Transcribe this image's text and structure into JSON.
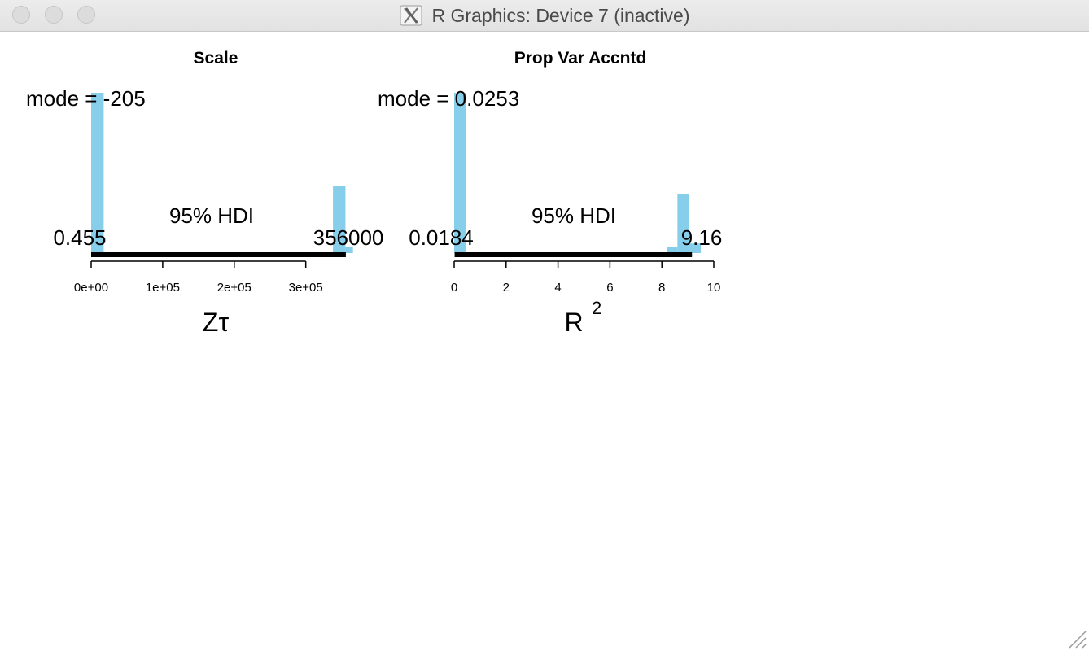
{
  "window": {
    "title": "R Graphics: Device 7 (inactive)",
    "app_icon": "x11-icon",
    "controls": [
      "close",
      "minimize",
      "maximize"
    ]
  },
  "colors": {
    "bar": "#87ceeb",
    "hdi": "#000000",
    "text": "#000000"
  },
  "chart_data": [
    {
      "type": "bar",
      "title": "Scale",
      "xlabel": "Zτ",
      "mode_label": "mode = -205",
      "hdi_label": "95% HDI",
      "hdi_low_label": "0.455",
      "hdi_high_label": "356000",
      "hdi": [
        0.455,
        356000
      ],
      "xlim": [
        0,
        380000
      ],
      "ticks": [
        0,
        100000,
        200000,
        300000
      ],
      "tick_labels": [
        "0e+00",
        "1e+05",
        "2e+05",
        "3e+05"
      ],
      "bins": [
        {
          "x0": 0,
          "x1": 17500,
          "density": 1.0
        },
        {
          "x0": 338000,
          "x1": 355500,
          "density": 0.42
        },
        {
          "x0": 355500,
          "x1": 366000,
          "density": 0.04
        }
      ]
    },
    {
      "type": "bar",
      "title": "Prop Var Accntd",
      "xlabel": "R",
      "xlabel_sup": "2",
      "mode_label": "mode = 0.0253",
      "hdi_label": "95% HDI",
      "hdi_low_label": "0.0184",
      "hdi_high_label": "9.16",
      "hdi": [
        0.0184,
        9.16
      ],
      "xlim": [
        0,
        10
      ],
      "ticks": [
        0,
        2,
        4,
        6,
        8,
        10
      ],
      "tick_labels": [
        "0",
        "2",
        "4",
        "6",
        "8",
        "10"
      ],
      "bins": [
        {
          "x0": 0,
          "x1": 0.45,
          "density": 1.0
        },
        {
          "x0": 8.2,
          "x1": 8.6,
          "density": 0.04
        },
        {
          "x0": 8.6,
          "x1": 9.05,
          "density": 0.37
        },
        {
          "x0": 9.05,
          "x1": 9.5,
          "density": 0.06
        }
      ]
    }
  ]
}
